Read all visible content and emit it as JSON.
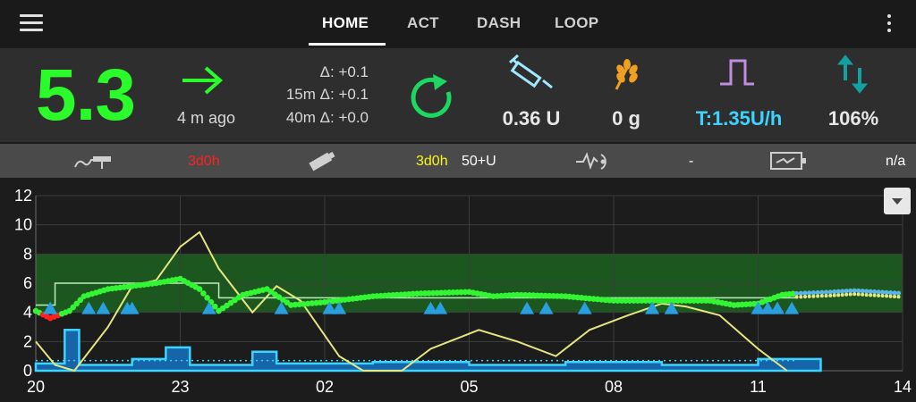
{
  "tabs": [
    {
      "label": "HOME",
      "active": true
    },
    {
      "label": "ACT",
      "active": false
    },
    {
      "label": "DASH",
      "active": false
    },
    {
      "label": "LOOP",
      "active": false
    }
  ],
  "bg": {
    "value": "5.3",
    "trend_icon": "arrow-right-icon",
    "ago": "4 m ago",
    "color": "#2bfa2b"
  },
  "deltas": [
    "Δ: +0.1",
    "15m Δ: +0.1",
    "40m Δ: +0.0"
  ],
  "stats": {
    "iob": {
      "icon": "syringe-icon",
      "value": "0.36 U"
    },
    "cob": {
      "icon": "wheat-icon",
      "value": "0 g"
    },
    "basal": {
      "icon": "temp-basal-icon",
      "value": "T:1.35U/h",
      "color": "#3cd4ff"
    },
    "sensitivity": {
      "icon": "autosens-arrows-icon",
      "value": "106%"
    }
  },
  "info": {
    "cannula_age": "3d0h",
    "insulin_age": "3d0h",
    "reservoir_level": "50+U",
    "sensor_level": "-",
    "pump_battery": "n/a"
  },
  "chart_data": {
    "type": "line",
    "x_ticks": [
      "20",
      "23",
      "02",
      "05",
      "08",
      "11",
      "14"
    ],
    "y_ticks": [
      "0",
      "2",
      "4",
      "6",
      "8",
      "10",
      "12"
    ],
    "ylim": [
      0,
      12
    ],
    "target_range": [
      4,
      8
    ],
    "grid": true,
    "now_marker_hour": 11.8,
    "bg_readings": [
      {
        "h": 20.0,
        "v": 4.1
      },
      {
        "h": 20.3,
        "v": 3.6
      },
      {
        "h": 20.7,
        "v": 4.1
      },
      {
        "h": 21.0,
        "v": 5.1
      },
      {
        "h": 21.5,
        "v": 5.6
      },
      {
        "h": 22.0,
        "v": 5.8
      },
      {
        "h": 22.5,
        "v": 6.0
      },
      {
        "h": 23.0,
        "v": 6.3
      },
      {
        "h": 23.4,
        "v": 5.6
      },
      {
        "h": 23.8,
        "v": 4.1
      },
      {
        "h": 24.3,
        "v": 5.2
      },
      {
        "h": 24.8,
        "v": 5.6
      },
      {
        "h": 25.3,
        "v": 4.5
      },
      {
        "h": 26.0,
        "v": 4.7
      },
      {
        "h": 27.0,
        "v": 5.1
      },
      {
        "h": 28.0,
        "v": 5.3
      },
      {
        "h": 29.0,
        "v": 5.4
      },
      {
        "h": 29.5,
        "v": 5.1
      },
      {
        "h": 30.0,
        "v": 5.2
      },
      {
        "h": 31.0,
        "v": 5.1
      },
      {
        "h": 32.0,
        "v": 4.8
      },
      {
        "h": 33.0,
        "v": 4.8
      },
      {
        "h": 34.0,
        "v": 4.8
      },
      {
        "h": 34.5,
        "v": 4.5
      },
      {
        "h": 35.0,
        "v": 4.6
      },
      {
        "h": 35.5,
        "v": 5.2
      },
      {
        "h": 35.8,
        "v": 5.3
      }
    ],
    "predictions": [
      {
        "h": 35.8,
        "v": 5.3
      },
      {
        "h": 36.5,
        "v": 5.4
      },
      {
        "h": 37.0,
        "v": 5.5
      },
      {
        "h": 37.5,
        "v": 5.4
      },
      {
        "h": 38.0,
        "v": 5.3
      }
    ],
    "activity_curve": [
      {
        "h": 20.0,
        "v": 2.0
      },
      {
        "h": 20.4,
        "v": 0.4
      },
      {
        "h": 20.8,
        "v": 0.0
      },
      {
        "h": 21.5,
        "v": 3.0
      },
      {
        "h": 22.0,
        "v": 5.8
      },
      {
        "h": 22.5,
        "v": 6.2
      },
      {
        "h": 23.0,
        "v": 8.5
      },
      {
        "h": 23.4,
        "v": 9.5
      },
      {
        "h": 23.8,
        "v": 7.0
      },
      {
        "h": 24.5,
        "v": 4.0
      },
      {
        "h": 25.0,
        "v": 5.8
      },
      {
        "h": 25.5,
        "v": 4.8
      },
      {
        "h": 26.3,
        "v": 1.0
      },
      {
        "h": 26.8,
        "v": 0.0
      },
      {
        "h": 27.6,
        "v": 0.0
      },
      {
        "h": 28.2,
        "v": 1.5
      },
      {
        "h": 29.2,
        "v": 2.8
      },
      {
        "h": 30.0,
        "v": 2.0
      },
      {
        "h": 30.8,
        "v": 1.0
      },
      {
        "h": 31.5,
        "v": 2.8
      },
      {
        "h": 32.3,
        "v": 3.8
      },
      {
        "h": 33.0,
        "v": 4.6
      },
      {
        "h": 33.5,
        "v": 4.4
      },
      {
        "h": 34.2,
        "v": 3.8
      },
      {
        "h": 35.0,
        "v": 1.5
      },
      {
        "h": 35.6,
        "v": 0.0
      }
    ],
    "basal_profile": [
      {
        "h": 20.0,
        "v": 0.5
      },
      {
        "h": 20.6,
        "v": 2.8
      },
      {
        "h": 20.9,
        "v": 0.4
      },
      {
        "h": 22.0,
        "v": 0.8
      },
      {
        "h": 22.7,
        "v": 1.6
      },
      {
        "h": 23.2,
        "v": 0.4
      },
      {
        "h": 24.5,
        "v": 1.3
      },
      {
        "h": 25.0,
        "v": 0.5
      },
      {
        "h": 27.0,
        "v": 0.6
      },
      {
        "h": 29.0,
        "v": 0.4
      },
      {
        "h": 31.0,
        "v": 0.6
      },
      {
        "h": 33.0,
        "v": 0.4
      },
      {
        "h": 35.0,
        "v": 0.8
      },
      {
        "h": 35.8,
        "v": 0.8
      },
      {
        "h": 36.3,
        "v": 0.8
      }
    ],
    "smb_hours": [
      20.3,
      21.1,
      21.4,
      21.9,
      22.0,
      23.6,
      25.1,
      26.1,
      26.3,
      28.2,
      28.4,
      30.2,
      30.6,
      31.4,
      32.8,
      33.2,
      35.0,
      35.2,
      35.4,
      35.7
    ],
    "profile_target": [
      {
        "h": 20.0,
        "v": 4.5
      },
      {
        "h": 20.4,
        "v": 6.0
      },
      {
        "h": 23.8,
        "v": 5.0
      },
      {
        "h": 35.8,
        "v": 5.0
      }
    ]
  }
}
